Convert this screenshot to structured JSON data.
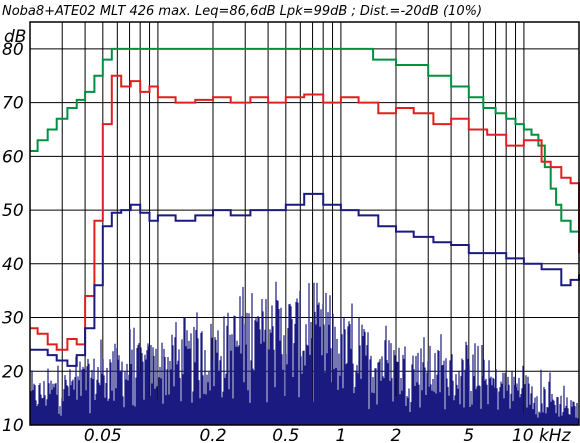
{
  "chart_data": {
    "type": "line",
    "title": "Noba8+ATE02 MLT 426 max. Leq=86,6dB  Lpk=99dB ; Dist.=-20dB (10%)",
    "ylabel": "dB",
    "xunit": "kHz",
    "x_scale": "log",
    "xlim_khz": [
      0.02,
      20
    ],
    "ylim": [
      10,
      85
    ],
    "yticks": [
      10,
      20,
      30,
      40,
      50,
      60,
      70,
      80
    ],
    "ytick_labels": [
      "10",
      "20",
      "30",
      "40",
      "50",
      "60",
      "70",
      "80"
    ],
    "xtick_labels": [
      {
        "khz": 0.05,
        "label": "0.05"
      },
      {
        "khz": 0.2,
        "label": "0.2"
      },
      {
        "khz": 0.5,
        "label": "0.5"
      },
      {
        "khz": 1,
        "label": "1"
      },
      {
        "khz": 2,
        "label": "2"
      },
      {
        "khz": 5,
        "label": "5"
      },
      {
        "khz": 10,
        "label": "10 kHz"
      }
    ],
    "grid": true,
    "series": [
      {
        "color": "#009040",
        "points": [
          [
            0.02,
            61
          ],
          [
            0.022,
            63
          ],
          [
            0.025,
            65
          ],
          [
            0.028,
            67
          ],
          [
            0.032,
            69
          ],
          [
            0.036,
            70.5
          ],
          [
            0.04,
            72
          ],
          [
            0.045,
            75
          ],
          [
            0.05,
            78
          ],
          [
            0.056,
            80
          ],
          [
            0.1,
            80
          ],
          [
            0.5,
            80
          ],
          [
            1,
            80
          ],
          [
            1.5,
            78
          ],
          [
            2,
            77
          ],
          [
            3,
            75
          ],
          [
            4,
            73
          ],
          [
            5,
            71
          ],
          [
            6,
            69
          ],
          [
            7,
            68
          ],
          [
            8,
            67
          ],
          [
            9,
            66
          ],
          [
            10,
            65
          ],
          [
            11,
            64
          ],
          [
            12,
            62
          ],
          [
            13,
            58
          ],
          [
            14,
            54
          ],
          [
            15,
            51
          ],
          [
            16,
            48
          ],
          [
            18,
            46
          ],
          [
            20,
            43
          ]
        ]
      },
      {
        "color": "#e02020",
        "points": [
          [
            0.02,
            28
          ],
          [
            0.022,
            27
          ],
          [
            0.025,
            25
          ],
          [
            0.028,
            24
          ],
          [
            0.032,
            26
          ],
          [
            0.036,
            25
          ],
          [
            0.04,
            34
          ],
          [
            0.045,
            48
          ],
          [
            0.05,
            66
          ],
          [
            0.056,
            75
          ],
          [
            0.063,
            73
          ],
          [
            0.071,
            74
          ],
          [
            0.08,
            72
          ],
          [
            0.09,
            73
          ],
          [
            0.1,
            71
          ],
          [
            0.125,
            70
          ],
          [
            0.16,
            70.5
          ],
          [
            0.2,
            71
          ],
          [
            0.25,
            70
          ],
          [
            0.32,
            71
          ],
          [
            0.4,
            70
          ],
          [
            0.5,
            71
          ],
          [
            0.63,
            71.5
          ],
          [
            0.8,
            70
          ],
          [
            1,
            71
          ],
          [
            1.25,
            70
          ],
          [
            1.6,
            68
          ],
          [
            2,
            69
          ],
          [
            2.5,
            68
          ],
          [
            3.2,
            66
          ],
          [
            4,
            67
          ],
          [
            5,
            65
          ],
          [
            6.3,
            64
          ],
          [
            8,
            62
          ],
          [
            10,
            63
          ],
          [
            12.5,
            59
          ],
          [
            14,
            58
          ],
          [
            16,
            56
          ],
          [
            18,
            55
          ],
          [
            20,
            42
          ]
        ]
      },
      {
        "color": "#1a1a80",
        "points": [
          [
            0.02,
            24
          ],
          [
            0.022,
            24
          ],
          [
            0.025,
            23
          ],
          [
            0.028,
            22
          ],
          [
            0.032,
            21
          ],
          [
            0.036,
            23
          ],
          [
            0.04,
            28
          ],
          [
            0.045,
            36
          ],
          [
            0.05,
            47
          ],
          [
            0.056,
            49.5
          ],
          [
            0.063,
            50
          ],
          [
            0.071,
            51
          ],
          [
            0.08,
            49.5
          ],
          [
            0.09,
            48
          ],
          [
            0.1,
            49
          ],
          [
            0.125,
            48
          ],
          [
            0.16,
            49
          ],
          [
            0.2,
            50
          ],
          [
            0.25,
            49
          ],
          [
            0.32,
            50
          ],
          [
            0.4,
            50
          ],
          [
            0.5,
            51
          ],
          [
            0.63,
            53
          ],
          [
            0.8,
            51
          ],
          [
            1,
            50
          ],
          [
            1.25,
            49
          ],
          [
            1.6,
            47
          ],
          [
            2,
            46
          ],
          [
            2.5,
            45
          ],
          [
            3.2,
            44
          ],
          [
            4,
            43.5
          ],
          [
            5,
            42
          ],
          [
            6.3,
            42
          ],
          [
            8,
            41
          ],
          [
            10,
            40
          ],
          [
            12.5,
            39
          ],
          [
            14,
            39
          ],
          [
            16,
            36
          ],
          [
            18,
            37
          ],
          [
            20,
            38
          ]
        ]
      }
    ],
    "spectrum": {
      "color": "#1a1a80",
      "floor_db": 10,
      "envelope": [
        [
          0.02,
          18
        ],
        [
          0.03,
          20
        ],
        [
          0.04,
          22
        ],
        [
          0.05,
          24
        ],
        [
          0.07,
          25
        ],
        [
          0.1,
          26
        ],
        [
          0.15,
          28
        ],
        [
          0.2,
          30
        ],
        [
          0.3,
          33
        ],
        [
          0.45,
          35
        ],
        [
          0.6,
          35
        ],
        [
          0.8,
          33
        ],
        [
          1,
          31
        ],
        [
          1.5,
          28
        ],
        [
          2,
          26
        ],
        [
          3,
          25
        ],
        [
          5,
          23
        ],
        [
          7,
          21
        ],
        [
          10,
          20
        ],
        [
          14,
          17
        ],
        [
          20,
          14
        ]
      ]
    }
  }
}
